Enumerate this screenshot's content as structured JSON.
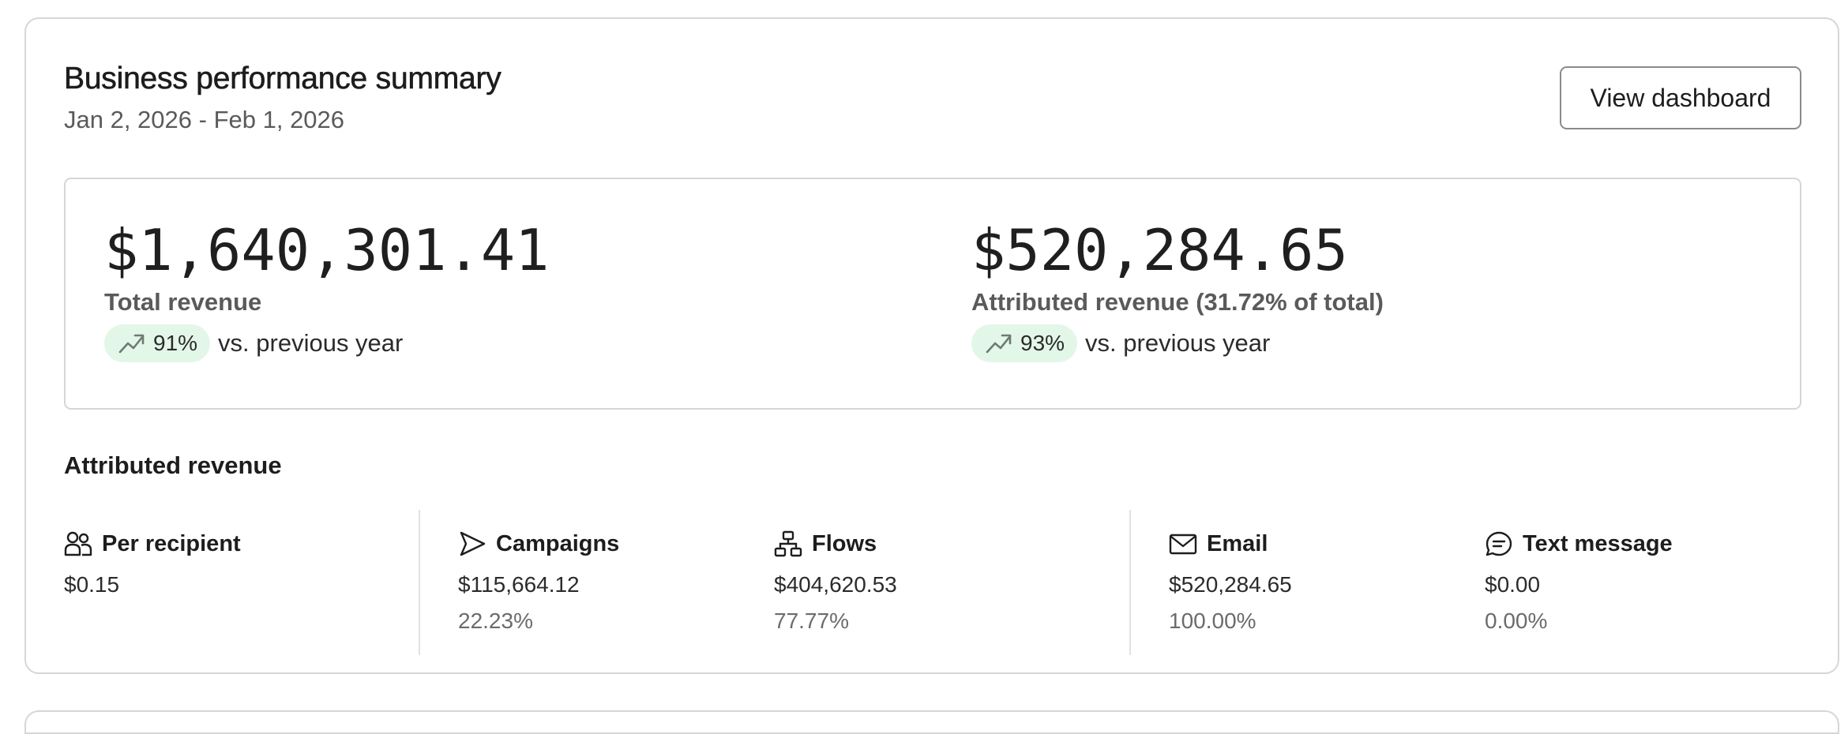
{
  "card": {
    "title": "Business performance summary",
    "date_range": "Jan 2, 2026 - Feb 1, 2026",
    "view_button_label": "View dashboard"
  },
  "summary": {
    "total": {
      "value": "$1,640,301.41",
      "label": "Total revenue",
      "trend_pct": "91%",
      "trend_text": "vs. previous year",
      "trend_icon": "trending-up-icon"
    },
    "attributed": {
      "value": "$520,284.65",
      "label": "Attributed revenue (31.72% of total)",
      "trend_pct": "93%",
      "trend_text": "vs. previous year",
      "trend_icon": "trending-up-icon"
    }
  },
  "breakdown": {
    "title": "Attributed revenue",
    "items": [
      {
        "label": "Per recipient",
        "value": "$0.15",
        "percent": "",
        "icon": "people-icon"
      },
      {
        "label": "Campaigns",
        "value": "$115,664.12",
        "percent": "22.23%",
        "icon": "send-icon"
      },
      {
        "label": "Flows",
        "value": "$404,620.53",
        "percent": "77.77%",
        "icon": "flow-icon"
      },
      {
        "label": "Email",
        "value": "$520,284.65",
        "percent": "100.00%",
        "icon": "mail-icon"
      },
      {
        "label": "Text message",
        "value": "$0.00",
        "percent": "0.00%",
        "icon": "message-icon"
      }
    ]
  },
  "colors": {
    "accent_pill": "#e3f7e8",
    "border": "#d6d6d6",
    "text_primary": "#1d1d1d",
    "text_secondary": "#5a5a5a"
  }
}
